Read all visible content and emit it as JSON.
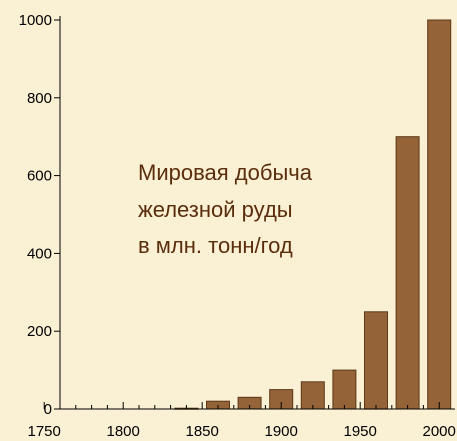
{
  "chart_data": {
    "type": "bar",
    "title": "",
    "xlabel": "",
    "ylabel": "",
    "annotation": [
      "Мировая добыча",
      "железной руды",
      "в млн. тонн/год"
    ],
    "x": [
      1800,
      1820,
      1840,
      1860,
      1880,
      1900,
      1920,
      1940,
      1960,
      1980,
      2000
    ],
    "values": [
      0,
      0,
      2,
      20,
      30,
      50,
      70,
      100,
      250,
      700,
      1000
    ],
    "xlim": [
      1760,
      2010
    ],
    "ylim": [
      0,
      1000
    ],
    "x_ticks": [
      1750,
      1800,
      1850,
      1900,
      1950,
      2000
    ],
    "x_tick_labels": [
      "1750",
      "1800",
      "1850",
      "1900",
      "1950",
      "2000"
    ],
    "y_ticks": [
      0,
      200,
      400,
      600,
      800,
      1000
    ],
    "y_tick_labels": [
      "0",
      "200",
      "400",
      "600",
      "800",
      "1000"
    ],
    "grid": false,
    "colors": {
      "background": "#faf0d4",
      "bar_fill": "#946337",
      "bar_stroke": "#5a3818",
      "annotation": "#5a2e0c",
      "axis": "#000000"
    }
  }
}
